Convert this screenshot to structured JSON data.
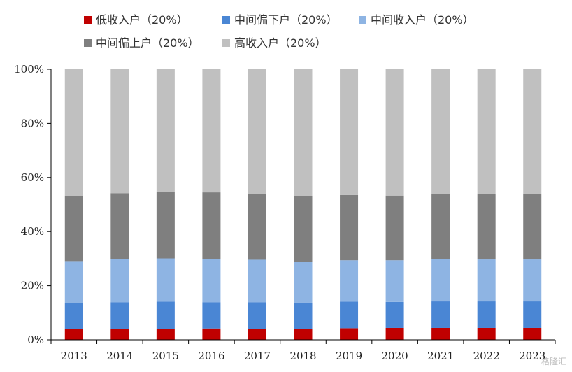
{
  "watermark": "格隆汇",
  "colors": {
    "low": "#c00000",
    "lower_middle": "#4a86d4",
    "middle": "#8eb4e3",
    "upper_middle": "#7f7f7f",
    "high": "#c0c0c0",
    "axis": "#000000"
  },
  "chart_data": {
    "type": "bar",
    "stacked": true,
    "categories": [
      "2013",
      "2014",
      "2015",
      "2016",
      "2017",
      "2018",
      "2019",
      "2020",
      "2021",
      "2022",
      "2023"
    ],
    "ylim": [
      0,
      100
    ],
    "yticks": [
      0,
      20,
      40,
      60,
      80,
      100
    ],
    "ytick_labels": [
      "0%",
      "20%",
      "40%",
      "60%",
      "80%",
      "100%"
    ],
    "grid": false,
    "legend_position": "top",
    "series": [
      {
        "name": "低收入户（20%）",
        "color_key": "low",
        "values": [
          4.1,
          4.1,
          4.1,
          4.2,
          4.1,
          4.0,
          4.3,
          4.4,
          4.4,
          4.4,
          4.4
        ]
      },
      {
        "name": "中间偏下户（20%）",
        "color_key": "lower_middle",
        "values": [
          9.5,
          9.8,
          10.0,
          9.7,
          9.8,
          9.7,
          9.8,
          9.6,
          9.8,
          9.8,
          9.8
        ]
      },
      {
        "name": "中间收入户（20%）",
        "color_key": "middle",
        "values": [
          15.5,
          16.0,
          16.0,
          16.0,
          15.7,
          15.2,
          15.3,
          15.4,
          15.6,
          15.5,
          15.5
        ]
      },
      {
        "name": "中间偏上户（20%）",
        "color_key": "upper_middle",
        "values": [
          24.1,
          24.3,
          24.5,
          24.6,
          24.4,
          24.3,
          24.1,
          23.9,
          24.1,
          24.3,
          24.3
        ]
      },
      {
        "name": "高收入户（20%）",
        "color_key": "high",
        "values": [
          46.8,
          45.8,
          45.4,
          45.5,
          46.0,
          46.8,
          46.5,
          46.7,
          46.1,
          46.0,
          46.0
        ]
      }
    ]
  }
}
